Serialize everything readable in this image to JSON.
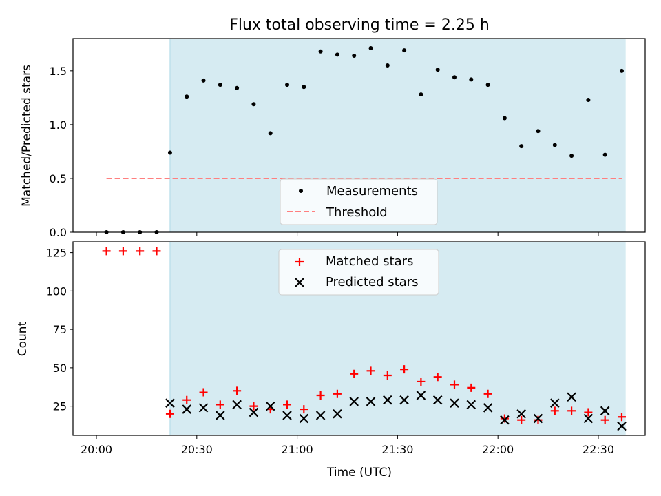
{
  "colors": {
    "shade": "#add8e6",
    "measurement": "#000000",
    "threshold": "#ff7f7f",
    "matched": "#ff0000",
    "predicted": "#000000"
  },
  "chart_data": [
    {
      "type": "scatter",
      "title": "Flux total observing time = 2.25 h",
      "ylabel": "Matched/Predicted stars",
      "xlabel": "",
      "ylim": [
        0,
        1.8
      ],
      "yticks": [
        "0.0",
        "0.5",
        "1.0",
        "1.5"
      ],
      "shaded_interval": [
        "20:22",
        "22:38"
      ],
      "legend_position": "lower center",
      "series": [
        {
          "name": "Measurements",
          "marker": "dot",
          "x": [
            "20:03",
            "20:08",
            "20:13",
            "20:18",
            "20:22",
            "20:27",
            "20:32",
            "20:37",
            "20:42",
            "20:47",
            "20:52",
            "20:57",
            "21:02",
            "21:07",
            "21:12",
            "21:17",
            "21:22",
            "21:27",
            "21:32",
            "21:37",
            "21:42",
            "21:47",
            "21:52",
            "21:57",
            "22:02",
            "22:07",
            "22:12",
            "22:17",
            "22:22",
            "22:27",
            "22:32",
            "22:37"
          ],
          "y": [
            0,
            0,
            0,
            0,
            0.74,
            1.26,
            1.41,
            1.37,
            1.34,
            1.19,
            0.92,
            1.37,
            1.35,
            1.68,
            1.65,
            1.64,
            1.71,
            1.55,
            1.69,
            1.28,
            1.51,
            1.44,
            1.42,
            1.37,
            1.06,
            0.8,
            0.94,
            0.81,
            0.71,
            1.23,
            0.72,
            1.5
          ]
        },
        {
          "name": "Threshold",
          "style": "dashed",
          "x": [
            "20:03",
            "22:37"
          ],
          "y": [
            0.5,
            0.5
          ]
        }
      ]
    },
    {
      "type": "scatter",
      "ylabel": "Count",
      "xlabel": "Time (UTC)",
      "ylim": [
        6,
        132
      ],
      "yticks": [
        "25",
        "50",
        "75",
        "100",
        "125"
      ],
      "xlim": [
        "19:53",
        "22:44"
      ],
      "xticks": [
        "20:00",
        "20:30",
        "21:00",
        "21:30",
        "22:00",
        "22:30"
      ],
      "shaded_interval": [
        "20:22",
        "22:38"
      ],
      "legend_position": "upper center",
      "series": [
        {
          "name": "Matched stars",
          "marker": "plus",
          "x": [
            "20:03",
            "20:08",
            "20:13",
            "20:18",
            "20:22",
            "20:27",
            "20:32",
            "20:37",
            "20:42",
            "20:47",
            "20:52",
            "20:57",
            "21:02",
            "21:07",
            "21:12",
            "21:17",
            "21:22",
            "21:27",
            "21:32",
            "21:37",
            "21:42",
            "21:47",
            "21:52",
            "21:57",
            "22:02",
            "22:07",
            "22:12",
            "22:17",
            "22:22",
            "22:27",
            "22:32",
            "22:37"
          ],
          "y": [
            126,
            126,
            126,
            126,
            20,
            29,
            34,
            26,
            35,
            25,
            23,
            26,
            23,
            32,
            33,
            46,
            48,
            45,
            49,
            41,
            44,
            39,
            37,
            33,
            17,
            16,
            16,
            22,
            22,
            21,
            16,
            18
          ]
        },
        {
          "name": "Predicted stars",
          "marker": "x",
          "x": [
            "20:22",
            "20:27",
            "20:32",
            "20:37",
            "20:42",
            "20:47",
            "20:52",
            "20:57",
            "21:02",
            "21:07",
            "21:12",
            "21:17",
            "21:22",
            "21:27",
            "21:32",
            "21:37",
            "21:42",
            "21:47",
            "21:52",
            "21:57",
            "22:02",
            "22:07",
            "22:12",
            "22:17",
            "22:22",
            "22:27",
            "22:32",
            "22:37"
          ],
          "y": [
            27,
            23,
            24,
            19,
            26,
            21,
            25,
            19,
            17,
            19,
            20,
            28,
            28,
            29,
            29,
            32,
            29,
            27,
            26,
            24,
            16,
            20,
            17,
            27,
            31,
            17,
            22,
            12
          ]
        }
      ]
    }
  ]
}
